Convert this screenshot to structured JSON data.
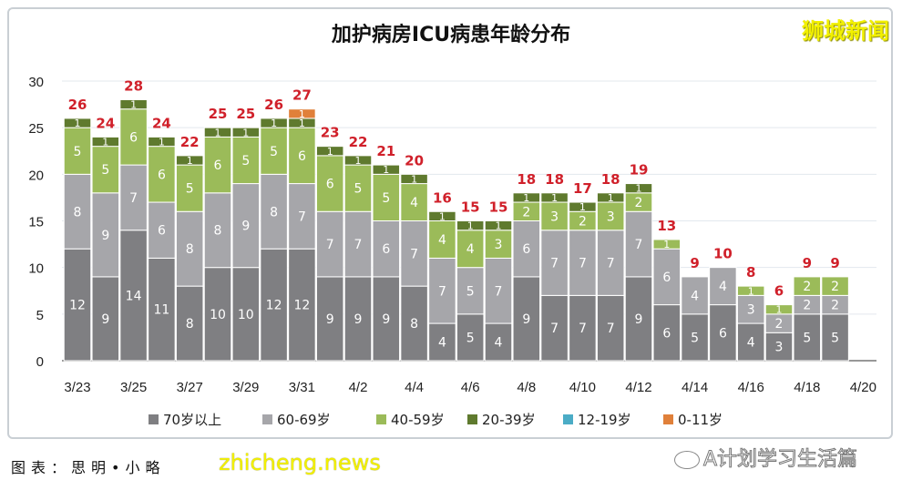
{
  "title": "加护病房ICU病患年龄分布",
  "watermarks": {
    "top_right": "狮城新闻",
    "site": "zhicheng.news",
    "caption": "图表：思明•小略",
    "wechat": "A计划学习生活篇"
  },
  "chart_data": {
    "type": "bar",
    "stacked": true,
    "title": "加护病房ICU病患年龄分布",
    "xlabel": "",
    "ylabel": "",
    "ylim": [
      0,
      30
    ],
    "yticks": [
      0,
      5,
      10,
      15,
      20,
      25,
      30
    ],
    "grid": true,
    "legend_position": "bottom",
    "categories": [
      "3/23",
      "3/24",
      "3/25",
      "3/26",
      "3/27",
      "3/28",
      "3/29",
      "3/30",
      "3/31",
      "4/1",
      "4/2",
      "4/3",
      "4/4",
      "4/5",
      "4/6",
      "4/7",
      "4/8",
      "4/9",
      "4/10",
      "4/11",
      "4/12",
      "4/13",
      "4/14",
      "4/15",
      "4/16",
      "4/17",
      "4/18",
      "4/19"
    ],
    "xtick_labels": [
      "3/23",
      "3/25",
      "3/27",
      "3/29",
      "3/31",
      "4/2",
      "4/4",
      "4/6",
      "4/8",
      "4/10",
      "4/12",
      "4/14",
      "4/16",
      "4/18",
      "4/20"
    ],
    "series": [
      {
        "name": "70岁以上",
        "color": "#7f7f82",
        "values": [
          12,
          9,
          14,
          11,
          8,
          10,
          10,
          12,
          12,
          9,
          9,
          9,
          8,
          4,
          5,
          4,
          9,
          7,
          7,
          7,
          9,
          6,
          5,
          6,
          4,
          3,
          5,
          5
        ]
      },
      {
        "name": "60-69岁",
        "color": "#a6a6aa",
        "values": [
          8,
          9,
          7,
          6,
          8,
          8,
          9,
          8,
          7,
          7,
          7,
          6,
          7,
          7,
          5,
          7,
          6,
          7,
          7,
          7,
          7,
          6,
          4,
          4,
          3,
          2,
          2,
          2
        ]
      },
      {
        "name": "40-59岁",
        "color": "#9bbb59",
        "values": [
          5,
          5,
          6,
          6,
          5,
          6,
          5,
          5,
          6,
          6,
          5,
          5,
          4,
          4,
          4,
          3,
          2,
          3,
          2,
          3,
          2,
          1,
          0,
          0,
          1,
          1,
          2,
          2
        ]
      },
      {
        "name": "20-39岁",
        "color": "#5f7a2e",
        "values": [
          1,
          1,
          1,
          1,
          1,
          1,
          1,
          1,
          1,
          1,
          1,
          1,
          1,
          1,
          1,
          1,
          1,
          1,
          1,
          1,
          1,
          0,
          0,
          0,
          0,
          0,
          0,
          0
        ]
      },
      {
        "name": "12-19岁",
        "color": "#4bacc6",
        "values": [
          0,
          0,
          0,
          0,
          0,
          0,
          0,
          0,
          0,
          0,
          0,
          0,
          0,
          0,
          0,
          0,
          0,
          0,
          0,
          0,
          0,
          0,
          0,
          0,
          0,
          0,
          0,
          0
        ]
      },
      {
        "name": "0-11岁",
        "color": "#e0803a",
        "values": [
          0,
          0,
          0,
          0,
          0,
          0,
          0,
          0,
          1,
          0,
          0,
          0,
          0,
          0,
          0,
          0,
          0,
          0,
          0,
          0,
          0,
          0,
          0,
          0,
          0,
          0,
          0,
          0
        ]
      }
    ],
    "totals": [
      26,
      24,
      28,
      24,
      22,
      25,
      25,
      26,
      27,
      23,
      22,
      21,
      20,
      16,
      15,
      15,
      18,
      18,
      17,
      18,
      19,
      13,
      9,
      10,
      8,
      6,
      9,
      9
    ],
    "total_label_color": "#d0202a"
  }
}
